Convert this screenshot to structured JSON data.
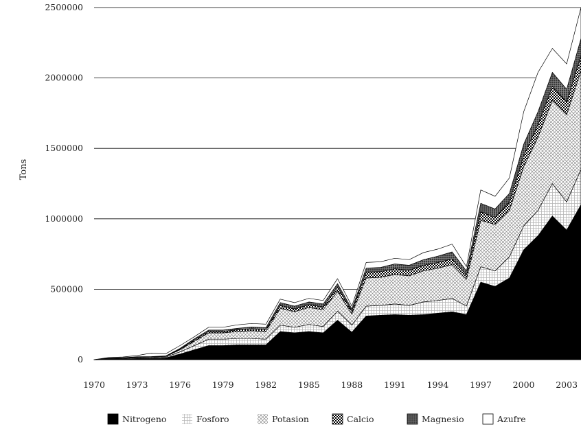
{
  "chart_data": {
    "type": "area",
    "stacked": true,
    "ylabel": "Tons",
    "xlim": [
      1970,
      2004
    ],
    "ylim": [
      0,
      2500000
    ],
    "yticks": [
      0,
      500000,
      1000000,
      1500000,
      2000000,
      2500000
    ],
    "xticks": [
      1970,
      1973,
      1976,
      1979,
      1982,
      1985,
      1988,
      1991,
      1994,
      1997,
      2000,
      2003
    ],
    "grid": "horizontal",
    "legend_position": "bottom",
    "x": [
      1970,
      1971,
      1972,
      1973,
      1974,
      1975,
      1976,
      1977,
      1978,
      1979,
      1980,
      1981,
      1982,
      1983,
      1984,
      1985,
      1986,
      1987,
      1988,
      1989,
      1990,
      1991,
      1992,
      1993,
      1994,
      1995,
      1996,
      1997,
      1998,
      1999,
      2000,
      2001,
      2002,
      2003,
      2004
    ],
    "series": [
      {
        "name": "Nitrogeno",
        "pattern": "solid",
        "values": [
          0,
          3000,
          5000,
          8000,
          8000,
          12000,
          40000,
          70000,
          100000,
          100000,
          105000,
          105000,
          105000,
          200000,
          190000,
          200000,
          190000,
          280000,
          195000,
          310000,
          315000,
          320000,
          315000,
          320000,
          330000,
          340000,
          320000,
          550000,
          520000,
          580000,
          780000,
          880000,
          1020000,
          920000,
          1100000
        ]
      },
      {
        "name": "Fosforo",
        "pattern": "grid",
        "values": [
          0,
          3000,
          4000,
          5000,
          6000,
          6000,
          15000,
          30000,
          45000,
          45000,
          45000,
          45000,
          40000,
          45000,
          40000,
          50000,
          45000,
          65000,
          50000,
          70000,
          70000,
          75000,
          70000,
          90000,
          90000,
          95000,
          60000,
          110000,
          110000,
          150000,
          170000,
          180000,
          230000,
          200000,
          250000
        ]
      },
      {
        "name": "Potasion",
        "pattern": "crosshatch",
        "values": [
          0,
          2000,
          3000,
          4000,
          4000,
          5000,
          15000,
          30000,
          45000,
          45000,
          50000,
          55000,
          55000,
          120000,
          110000,
          120000,
          120000,
          140000,
          80000,
          200000,
          200000,
          210000,
          210000,
          220000,
          230000,
          240000,
          190000,
          330000,
          330000,
          330000,
          420000,
          520000,
          590000,
          620000,
          700000
        ]
      },
      {
        "name": "Calcio",
        "pattern": "checker",
        "values": [
          0,
          1000,
          1000,
          2000,
          2000,
          2000,
          5000,
          10000,
          10000,
          10000,
          12000,
          15000,
          15000,
          20000,
          20000,
          20000,
          20000,
          30000,
          20000,
          40000,
          40000,
          40000,
          40000,
          40000,
          40000,
          40000,
          30000,
          60000,
          50000,
          60000,
          80000,
          90000,
          100000,
          90000,
          110000
        ]
      },
      {
        "name": "Magnesio",
        "pattern": "dense",
        "values": [
          0,
          1000,
          1000,
          2000,
          2000,
          2000,
          5000,
          8000,
          10000,
          10000,
          10000,
          12000,
          12000,
          20000,
          20000,
          20000,
          20000,
          25000,
          15000,
          30000,
          30000,
          35000,
          35000,
          40000,
          45000,
          50000,
          30000,
          60000,
          60000,
          60000,
          80000,
          90000,
          100000,
          90000,
          120000
        ]
      },
      {
        "name": "Azufre",
        "pattern": "white",
        "values": [
          0,
          5000,
          5000,
          8000,
          25000,
          15000,
          20000,
          15000,
          20000,
          20000,
          25000,
          25000,
          25000,
          25000,
          25000,
          25000,
          25000,
          35000,
          20000,
          40000,
          40000,
          40000,
          40000,
          50000,
          50000,
          55000,
          30000,
          95000,
          90000,
          110000,
          230000,
          280000,
          170000,
          180000,
          220000
        ]
      }
    ]
  }
}
